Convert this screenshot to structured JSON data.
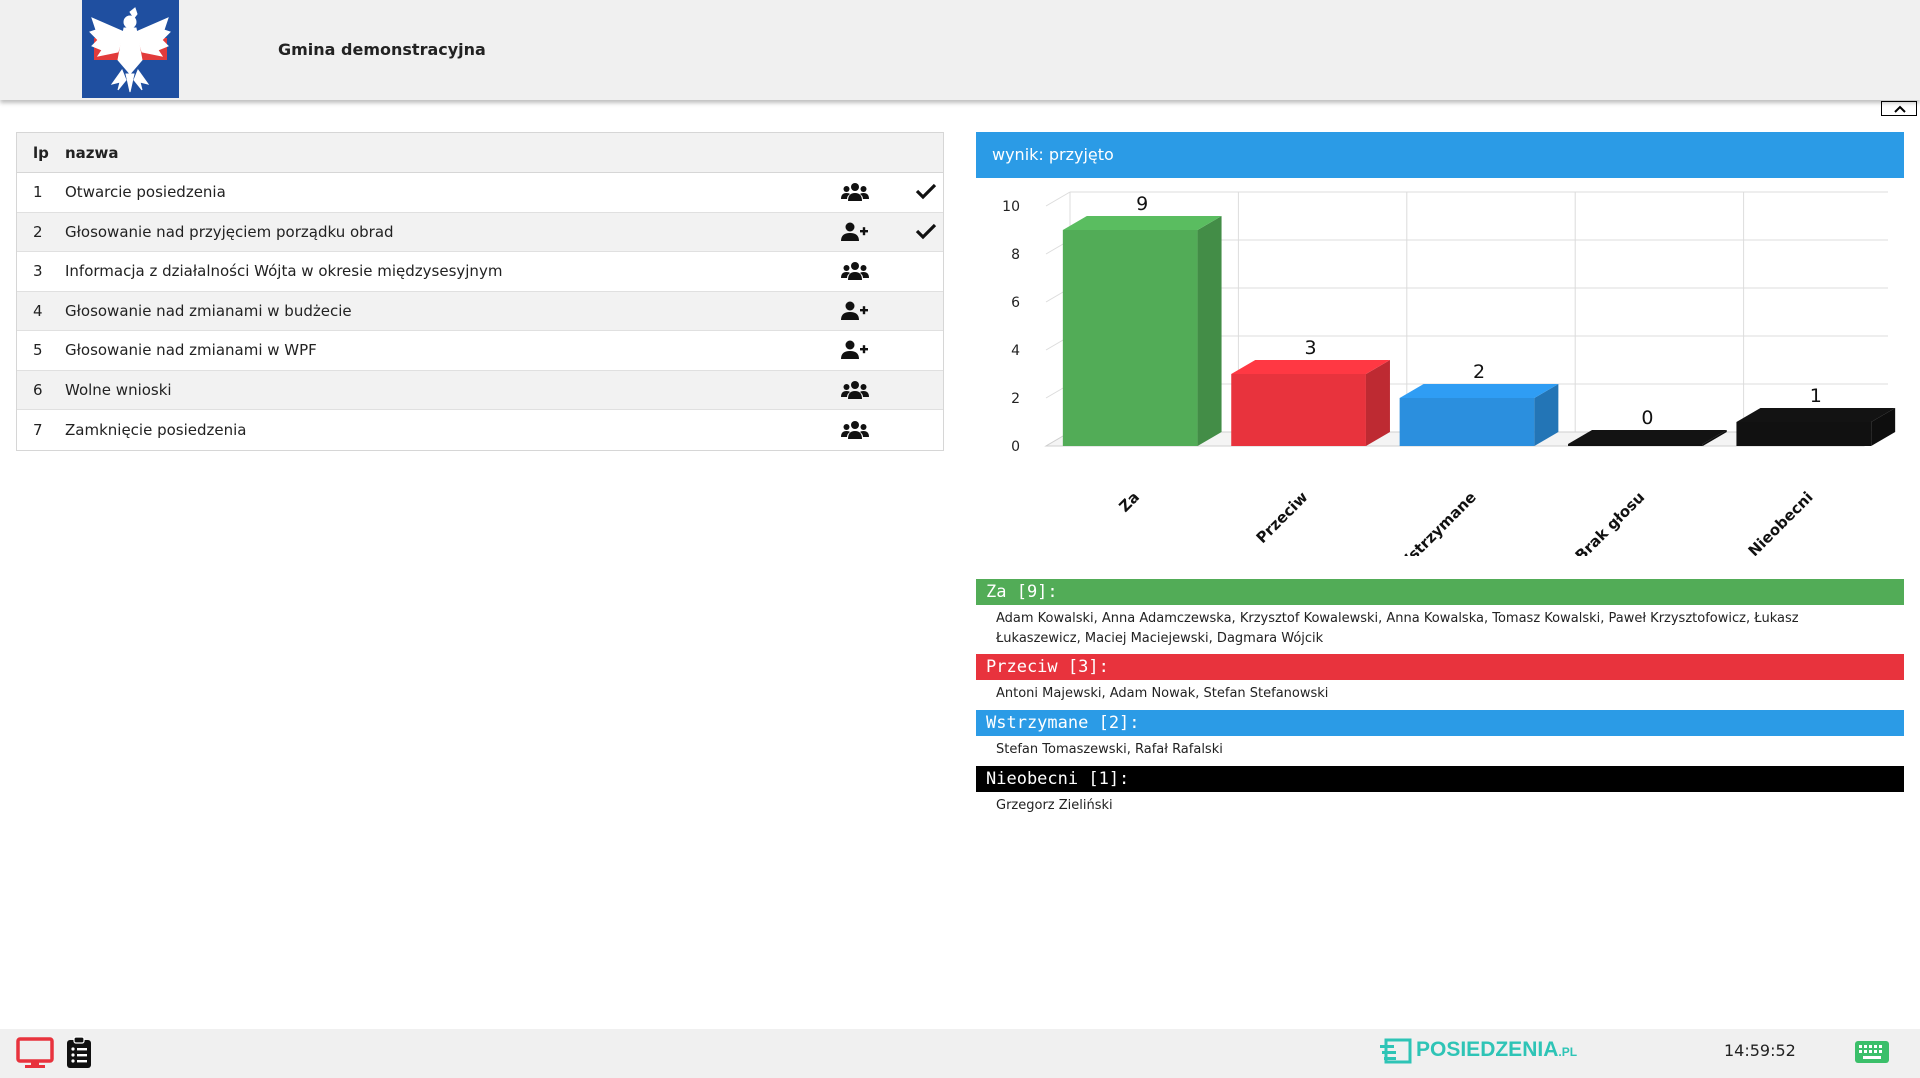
{
  "header": {
    "org_name": "Gmina demonstracyjna"
  },
  "agenda": {
    "columns": {
      "lp": "lp",
      "name": "nazwa"
    },
    "items": [
      {
        "lp": "1",
        "name": "Otwarcie posiedzenia",
        "type_icon": "users-icon",
        "done": true
      },
      {
        "lp": "2",
        "name": "Głosowanie nad przyjęciem porządku obrad",
        "type_icon": "user-plus-icon",
        "done": true
      },
      {
        "lp": "3",
        "name": "Informacja z działalności Wójta w okresie międzysesyjnym",
        "type_icon": "users-icon",
        "done": false
      },
      {
        "lp": "4",
        "name": "Głosowanie nad zmianami w budżecie",
        "type_icon": "user-plus-icon",
        "done": false
      },
      {
        "lp": "5",
        "name": "Głosowanie nad zmianami w WPF",
        "type_icon": "user-plus-icon",
        "done": false
      },
      {
        "lp": "6",
        "name": "Wolne wnioski",
        "type_icon": "users-icon",
        "done": false
      },
      {
        "lp": "7",
        "name": "Zamknięcie posiedzenia",
        "type_icon": "users-icon",
        "done": false
      }
    ]
  },
  "result": {
    "label": "wynik: przyjęto"
  },
  "chart_data": {
    "type": "bar",
    "categories": [
      "Za",
      "Przeciw",
      "Wstrzymane",
      "Brak głosu",
      "Nieobecni"
    ],
    "values": [
      9,
      3,
      2,
      0,
      1
    ],
    "colors": [
      "#52ac57",
      "#e8333d",
      "#2b8fde",
      "#111111",
      "#111111"
    ],
    "ylim": [
      0,
      10
    ],
    "yticks": [
      "0",
      "2",
      "4",
      "6",
      "8",
      "10"
    ],
    "grid": true,
    "style": "3d"
  },
  "votes": [
    {
      "header": "Za [9]:",
      "color": "#52ac57",
      "names": "Adam Kowalski, Anna Adamczewska, Krzysztof Kowalewski, Anna Kowalska, Tomasz Kowalski, Paweł Krzysztofowicz, Łukasz Łukaszewicz, Maciej Maciejewski, Dagmara Wójcik"
    },
    {
      "header": "Przeciw [3]:",
      "color": "#e8333d",
      "names": "Antoni Majewski, Adam Nowak, Stefan Stefanowski"
    },
    {
      "header": "Wstrzymane [2]:",
      "color": "#2b9be6",
      "names": "Stefan Tomaszewski, Rafał Rafalski"
    },
    {
      "header": "Nieobecni [1]:",
      "color": "#000000",
      "names": "Grzegorz Zieliński"
    }
  ],
  "footer": {
    "brand": "POSIEDZENIA",
    "brand_suffix": ".PL",
    "clock": "14:59:52",
    "icons": [
      "monitor-icon",
      "clipboard-icon",
      "keyboard-icon"
    ]
  }
}
